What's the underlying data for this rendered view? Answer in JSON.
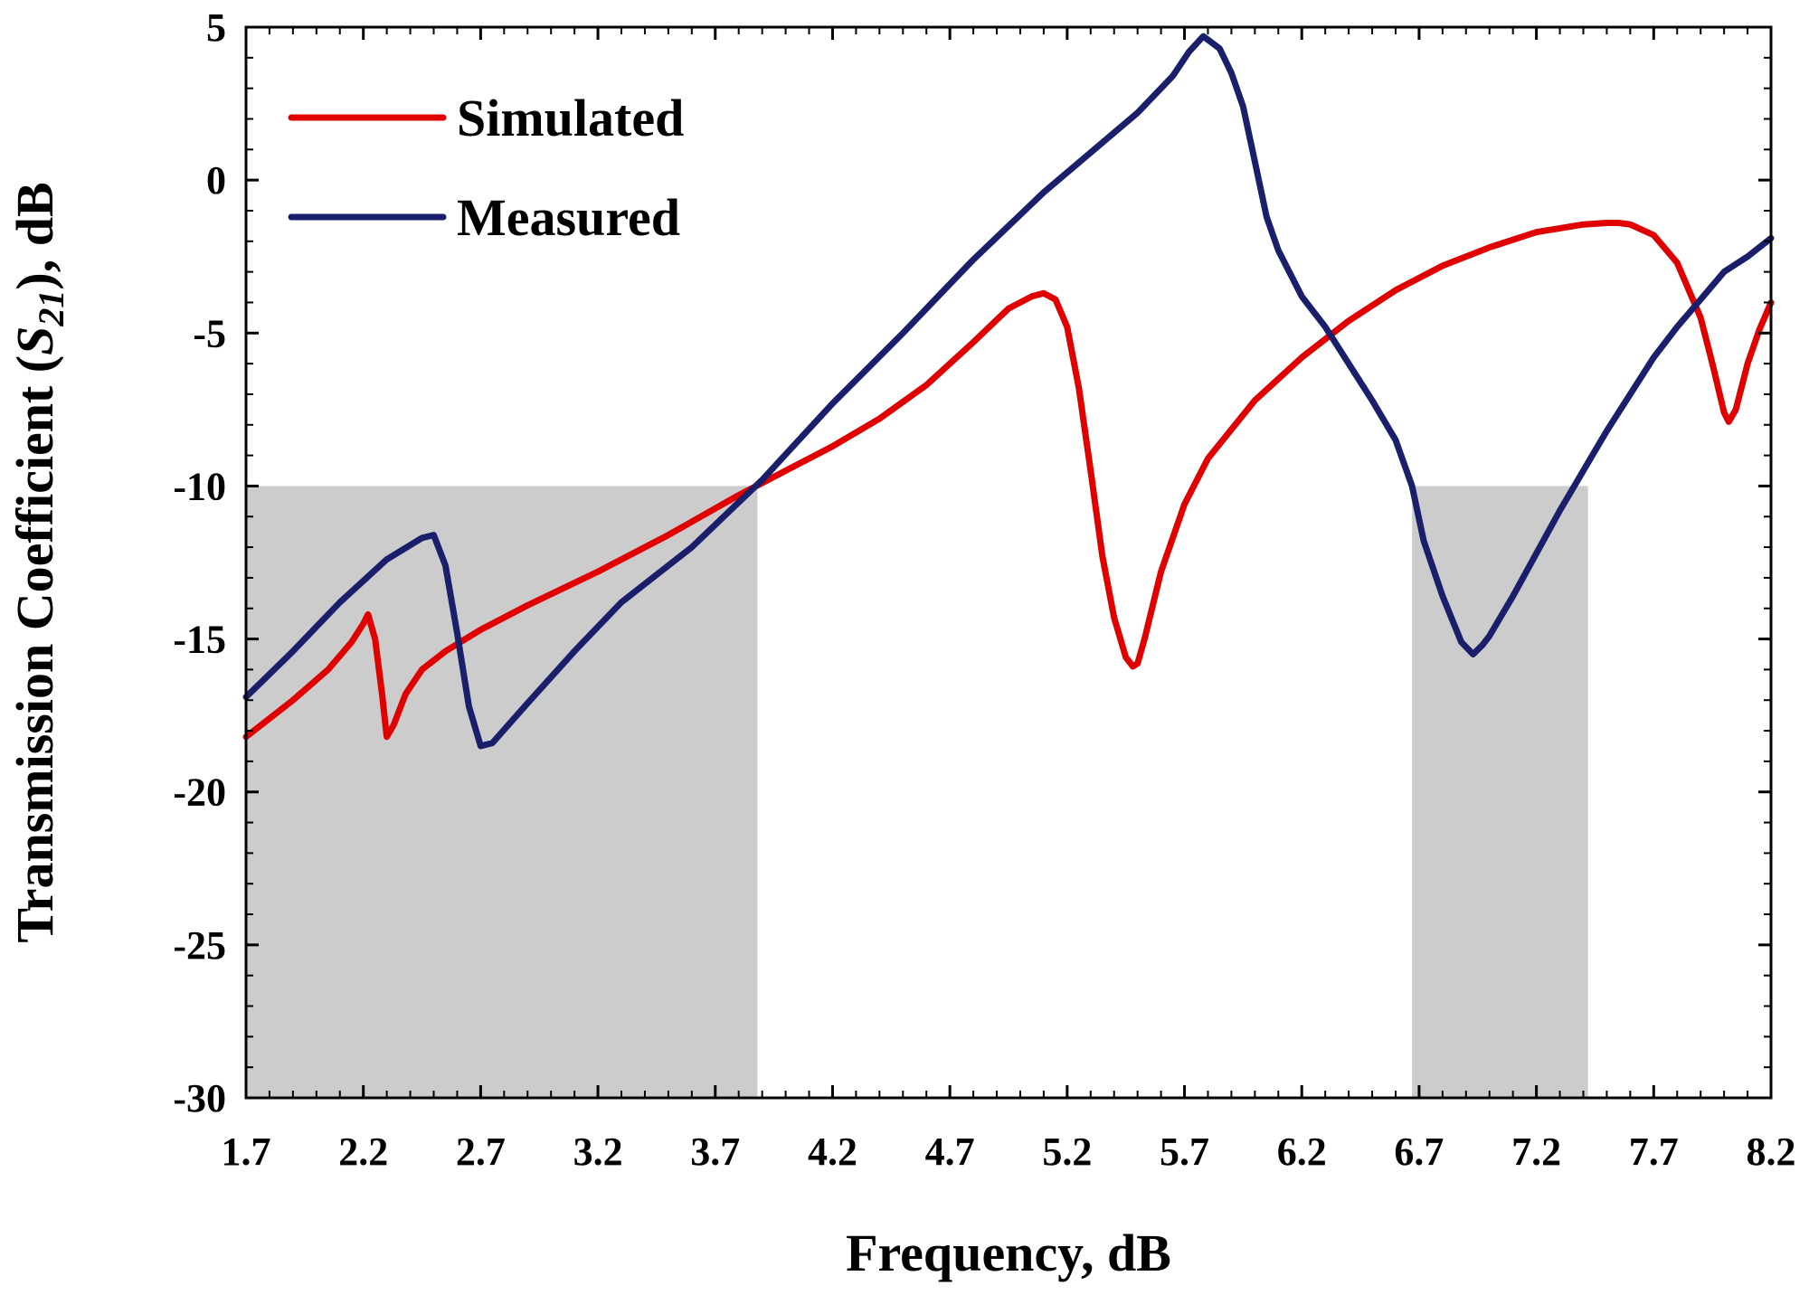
{
  "chart_data": {
    "type": "line",
    "title": "",
    "xlabel": "Frequency, dB",
    "ylabel": {
      "prefix": "Transmission Coefficient (",
      "symbol": "S",
      "subscript": "21",
      "suffix": "), dB"
    },
    "xlim": [
      1.7,
      8.2
    ],
    "ylim": [
      -30,
      5
    ],
    "xticks": [
      1.7,
      2.2,
      2.7,
      3.2,
      3.7,
      4.2,
      4.7,
      5.2,
      5.7,
      6.2,
      6.7,
      7.2,
      7.7,
      8.2
    ],
    "xtick_labels": [
      "1.7",
      "2.2",
      "2.7",
      "3.2",
      "3.7",
      "4.2",
      "4.7",
      "5.2",
      "5.7",
      "6.2",
      "6.7",
      "7.2",
      "7.7",
      "8.2"
    ],
    "yticks": [
      5,
      0,
      -5,
      -10,
      -15,
      -20,
      -25,
      -30
    ],
    "ytick_labels": [
      "5",
      "0",
      "-5",
      "-10",
      "-15",
      "-20",
      "-25",
      "-30"
    ],
    "grid": false,
    "legend_position": "top-left",
    "shaded_regions": [
      {
        "x0": 1.7,
        "x1": 3.88,
        "y0": -30,
        "y1": -10,
        "color": "#cccccc"
      },
      {
        "x0": 6.67,
        "x1": 7.42,
        "y0": -30,
        "y1": -10,
        "color": "#cccccc"
      }
    ],
    "series": [
      {
        "name": "Simulated",
        "color": "#e00000",
        "x": [
          1.7,
          1.9,
          2.05,
          2.15,
          2.2,
          2.22,
          2.25,
          2.28,
          2.3,
          2.33,
          2.38,
          2.45,
          2.55,
          2.7,
          2.9,
          3.2,
          3.5,
          3.8,
          4.0,
          4.2,
          4.4,
          4.6,
          4.8,
          4.95,
          5.05,
          5.1,
          5.15,
          5.2,
          5.25,
          5.3,
          5.35,
          5.4,
          5.45,
          5.48,
          5.5,
          5.53,
          5.6,
          5.7,
          5.8,
          6.0,
          6.2,
          6.4,
          6.6,
          6.8,
          7.0,
          7.2,
          7.4,
          7.5,
          7.55,
          7.6,
          7.7,
          7.8,
          7.9,
          7.95,
          8.0,
          8.02,
          8.05,
          8.1,
          8.15,
          8.2
        ],
        "values": [
          -18.2,
          -17.0,
          -16.0,
          -15.1,
          -14.5,
          -14.2,
          -15.0,
          -16.8,
          -18.2,
          -17.8,
          -16.8,
          -16.0,
          -15.4,
          -14.7,
          -13.9,
          -12.8,
          -11.6,
          -10.3,
          -9.5,
          -8.7,
          -7.8,
          -6.7,
          -5.3,
          -4.2,
          -3.8,
          -3.7,
          -3.9,
          -4.8,
          -6.8,
          -9.5,
          -12.3,
          -14.3,
          -15.6,
          -15.9,
          -15.8,
          -15.0,
          -12.8,
          -10.6,
          -9.1,
          -7.2,
          -5.8,
          -4.6,
          -3.6,
          -2.8,
          -2.2,
          -1.7,
          -1.45,
          -1.4,
          -1.4,
          -1.45,
          -1.8,
          -2.7,
          -4.5,
          -6.0,
          -7.6,
          -7.9,
          -7.5,
          -6.0,
          -4.9,
          -4.0
        ]
      },
      {
        "name": "Measured",
        "color": "#1a1f6b",
        "x": [
          1.7,
          1.9,
          2.1,
          2.3,
          2.45,
          2.5,
          2.55,
          2.6,
          2.65,
          2.7,
          2.75,
          2.9,
          3.1,
          3.3,
          3.6,
          3.9,
          4.2,
          4.5,
          4.8,
          5.1,
          5.3,
          5.5,
          5.65,
          5.72,
          5.78,
          5.85,
          5.9,
          5.95,
          6.0,
          6.05,
          6.1,
          6.2,
          6.3,
          6.4,
          6.5,
          6.6,
          6.67,
          6.72,
          6.8,
          6.88,
          6.93,
          6.97,
          7.0,
          7.1,
          7.2,
          7.3,
          7.4,
          7.5,
          7.6,
          7.7,
          7.8,
          7.9,
          8.0,
          8.1,
          8.2
        ],
        "values": [
          -16.9,
          -15.4,
          -13.8,
          -12.4,
          -11.7,
          -11.6,
          -12.6,
          -14.8,
          -17.2,
          -18.5,
          -18.4,
          -17.1,
          -15.4,
          -13.8,
          -12.0,
          -9.8,
          -7.3,
          -5.0,
          -2.6,
          -0.4,
          0.9,
          2.2,
          3.4,
          4.2,
          4.7,
          4.3,
          3.5,
          2.4,
          0.6,
          -1.2,
          -2.3,
          -3.8,
          -4.8,
          -6.0,
          -7.2,
          -8.5,
          -10.0,
          -11.8,
          -13.6,
          -15.1,
          -15.5,
          -15.2,
          -14.9,
          -13.6,
          -12.2,
          -10.8,
          -9.5,
          -8.2,
          -7.0,
          -5.8,
          -4.8,
          -3.9,
          -3.0,
          -2.5,
          -1.9
        ]
      }
    ]
  }
}
